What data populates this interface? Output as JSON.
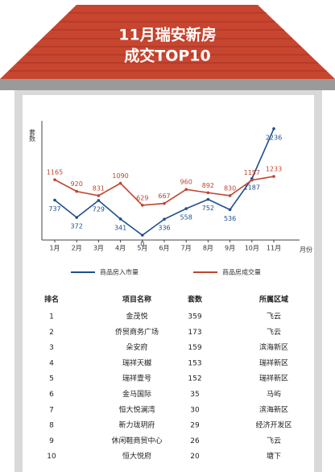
{
  "header": {
    "title": [
      "11月瑞安新房",
      "成交TOP10"
    ]
  },
  "chart_data": {
    "type": "line",
    "y_label": "套数",
    "x_label": "月份",
    "categories": [
      "1月",
      "2月",
      "3月",
      "4月",
      "5月",
      "6月",
      "7月",
      "8月",
      "9月",
      "10月",
      "11月"
    ],
    "ylim": [
      0,
      2300
    ],
    "series": [
      {
        "name": "商品房入市量",
        "color": "#1f4e8c",
        "values": [
          737,
          372,
          729,
          341,
          0,
          336,
          558,
          752,
          536,
          1187,
          2236
        ]
      },
      {
        "name": "商品房成交量",
        "color": "#c0442e",
        "values": [
          1165,
          920,
          831,
          1090,
          629,
          667,
          960,
          892,
          830,
          1157,
          1233
        ]
      }
    ]
  },
  "table": {
    "columns": [
      "排名",
      "项目名称",
      "套数",
      "所属区域"
    ],
    "rows": [
      [
        1,
        "金茂悦",
        359,
        "飞云"
      ],
      [
        2,
        "侨贸商务广场",
        173,
        "飞云"
      ],
      [
        3,
        "朵安府",
        159,
        "滨海新区"
      ],
      [
        4,
        "瑞祥天樾",
        153,
        "瑞祥新区"
      ],
      [
        5,
        "瑞祥壹号",
        152,
        "瑞祥新区"
      ],
      [
        6,
        "金马国际",
        35,
        "马屿"
      ],
      [
        7,
        "恒大悦澜湾",
        30,
        "滨海新区"
      ],
      [
        8,
        "新力珑玥府",
        29,
        "经济开发区"
      ],
      [
        9,
        "休闲鞋商贸中心",
        26,
        "飞云"
      ],
      [
        10,
        "恒大悦府",
        20,
        "塘下"
      ]
    ]
  }
}
